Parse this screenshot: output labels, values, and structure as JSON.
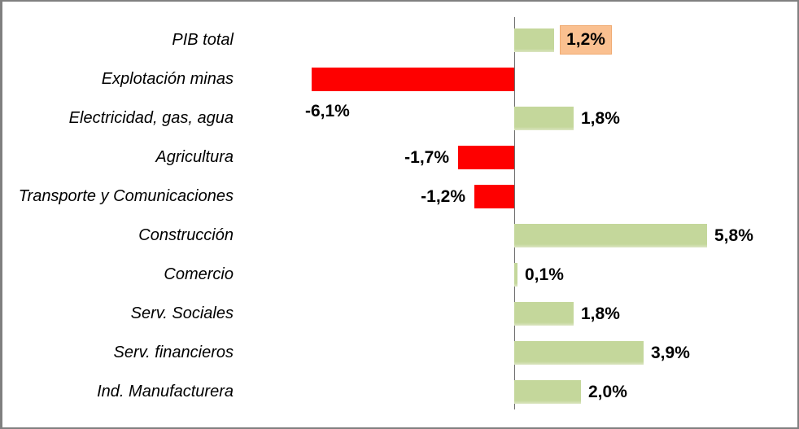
{
  "chart_data": {
    "type": "bar",
    "orientation": "horizontal",
    "title": "",
    "xlabel": "",
    "ylabel": "",
    "xlim": [
      -6.5,
      8.5
    ],
    "grid": false,
    "legend": "none",
    "categories": [
      "PIB total",
      "Explotación minas",
      "Electricidad, gas, agua",
      "Agricultura",
      "Transporte y Comunicaciones",
      "Construcción",
      "Comercio",
      "Serv. Sociales",
      "Serv. financieros",
      "Ind. Manufacturera"
    ],
    "values": [
      1.2,
      -6.1,
      1.8,
      -1.7,
      -1.2,
      5.8,
      0.1,
      1.8,
      3.9,
      2.0
    ],
    "value_labels": [
      "1,2%",
      "-6,1%",
      "1,8%",
      "-1,7%",
      "-1,2%",
      "5,8%",
      "0,1%",
      "1,8%",
      "3,9%",
      "2,0%"
    ],
    "label_placement": [
      "boxed-right",
      "below-left",
      "right",
      "left",
      "left",
      "right",
      "right",
      "right",
      "right",
      "right"
    ],
    "colors": {
      "positive_bar": "#C4D79B",
      "negative_bar": "#FE0000",
      "highlight_label_bg": "#FAC090",
      "axis": "#6E6E6E",
      "text": "#000000",
      "frame_border": "#808080"
    }
  }
}
